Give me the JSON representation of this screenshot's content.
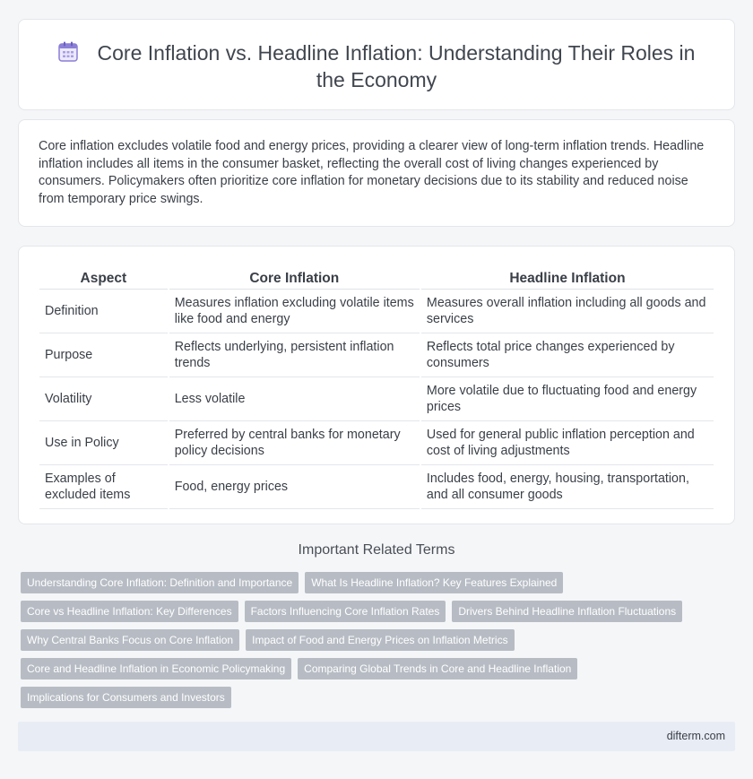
{
  "header": {
    "title": "Core Inflation vs. Headline Inflation: Understanding Their Roles in the Economy",
    "icon": "calendar-icon"
  },
  "intro": {
    "text": "Core inflation excludes volatile food and energy prices, providing a clearer view of long-term inflation trends. Headline inflation includes all items in the consumer basket, reflecting the overall cost of living changes experienced by consumers. Policymakers often prioritize core inflation for monetary decisions due to its stability and reduced noise from temporary price swings."
  },
  "table": {
    "headers": [
      "Aspect",
      "Core Inflation",
      "Headline Inflation"
    ],
    "rows": [
      [
        "Definition",
        "Measures inflation excluding volatile items like food and energy",
        "Measures overall inflation including all goods and services"
      ],
      [
        "Purpose",
        "Reflects underlying, persistent inflation trends",
        "Reflects total price changes experienced by consumers"
      ],
      [
        "Volatility",
        "Less volatile",
        "More volatile due to fluctuating food and energy prices"
      ],
      [
        "Use in Policy",
        "Preferred by central banks for monetary policy decisions",
        "Used for general public inflation perception and cost of living adjustments"
      ],
      [
        "Examples of excluded items",
        "Food, energy prices",
        "Includes food, energy, housing, transportation, and all consumer goods"
      ]
    ]
  },
  "related": {
    "title": "Important Related Terms",
    "tags": [
      [
        "Understanding Core Inflation: Definition and Importance",
        "What Is Headline Inflation? Key Features Explained"
      ],
      [
        "Core vs Headline Inflation: Key Differences",
        "Factors Influencing Core Inflation Rates",
        "Drivers Behind Headline Inflation Fluctuations"
      ],
      [
        "Why Central Banks Focus on Core Inflation",
        "Impact of Food and Energy Prices on Inflation Metrics"
      ],
      [
        "Core and Headline Inflation in Economic Policymaking",
        "Comparing Global Trends in Core and Headline Inflation"
      ],
      [
        "Implications for Consumers and Investors"
      ]
    ]
  },
  "footer": {
    "site": "difterm.com"
  },
  "colors": {
    "accent_icon": "#8b7fd6",
    "tag_bg": "#b7bcc4",
    "footer_bg": "#e8edf5"
  }
}
